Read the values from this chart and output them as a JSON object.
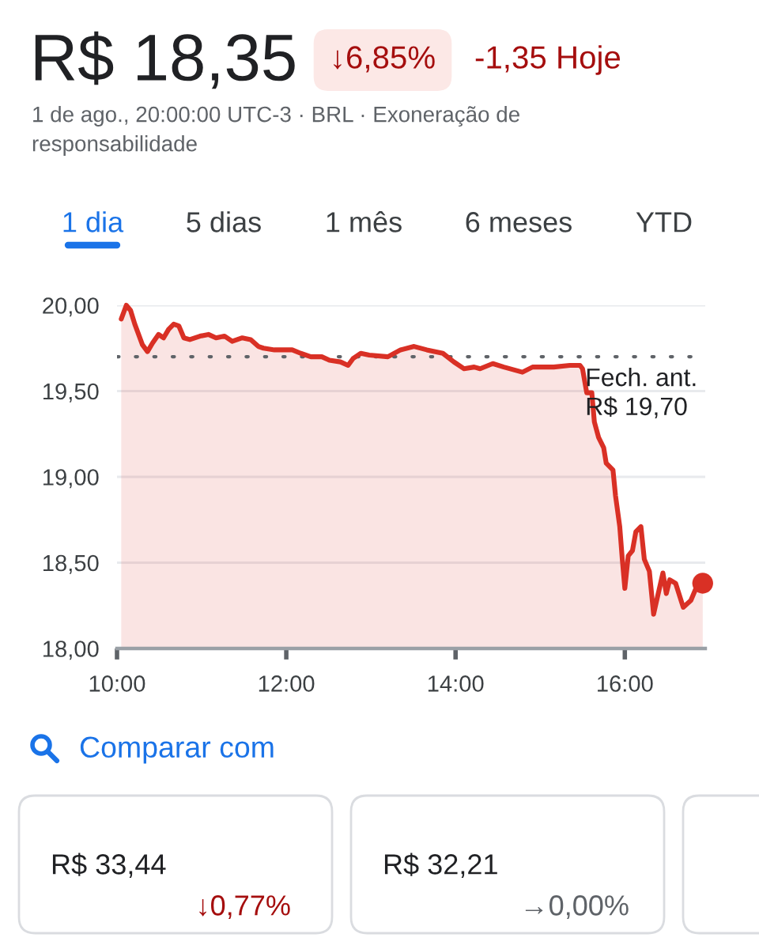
{
  "chart_data": {
    "type": "area",
    "title": "R$ 18,35",
    "subtitle": "1 de ago., 20:00:00 UTC-3 · BRL · Exoneração de responsabilidade",
    "annotations": [
      "↓6,85%",
      "-1,35 Hoje",
      "1 dia",
      "5 dias",
      "1 mês",
      "6 meses",
      "YTD",
      "Comparar com",
      "R$ 33,44",
      "↓0,77%",
      "R$ 32,21",
      "→0,00%"
    ],
    "xlim": [
      10,
      16.95
    ],
    "xticks": [
      {
        "value": 10,
        "label": "10:00"
      },
      {
        "value": 12,
        "label": "12:00"
      },
      {
        "value": 14,
        "label": "14:00"
      },
      {
        "value": 16,
        "label": "16:00"
      }
    ],
    "ylim": [
      18,
      20
    ],
    "yticks": [
      {
        "value": 18,
        "label": "18,00"
      },
      {
        "value": 18.5,
        "label": "18,50"
      },
      {
        "value": 19,
        "label": "19,00"
      },
      {
        "value": 19.5,
        "label": "19,50"
      },
      {
        "value": 20,
        "label": "20,00"
      }
    ],
    "grid": "y",
    "series": [
      {
        "color": "#d93025",
        "x": [
          10.05,
          10.11,
          10.16,
          10.21,
          10.3,
          10.36,
          10.42,
          10.49,
          10.55,
          10.61,
          10.67,
          10.73,
          10.79,
          10.86,
          10.98,
          11.08,
          11.17,
          11.27,
          11.36,
          11.48,
          11.58,
          11.67,
          11.73,
          11.86,
          11.98,
          12.07,
          12.17,
          12.29,
          12.42,
          12.51,
          12.64,
          12.73,
          12.79,
          12.88,
          12.98,
          13.2,
          13.35,
          13.51,
          13.66,
          13.85,
          13.98,
          14.1,
          14.22,
          14.29,
          14.44,
          14.57,
          14.79,
          14.91,
          15.16,
          15.35,
          15.47,
          15.5,
          15.55,
          15.61,
          15.64,
          15.69,
          15.75,
          15.78,
          15.86,
          15.89,
          15.94,
          15.97,
          16.0,
          16.04,
          16.09,
          16.13,
          16.19,
          16.23,
          16.29,
          16.34,
          16.39,
          16.45,
          16.49,
          16.53,
          16.6,
          16.69,
          16.78,
          16.84,
          16.92
        ],
        "values": [
          19.92,
          20.0,
          19.97,
          19.89,
          19.77,
          19.73,
          19.78,
          19.83,
          19.81,
          19.86,
          19.89,
          19.88,
          19.81,
          19.8,
          19.82,
          19.83,
          19.81,
          19.82,
          19.79,
          19.81,
          19.8,
          19.76,
          19.75,
          19.74,
          19.74,
          19.74,
          19.72,
          19.7,
          19.7,
          19.68,
          19.67,
          19.65,
          19.69,
          19.72,
          19.71,
          19.7,
          19.74,
          19.76,
          19.74,
          19.72,
          19.67,
          19.63,
          19.64,
          19.63,
          19.66,
          19.64,
          19.61,
          19.64,
          19.64,
          19.65,
          19.65,
          19.63,
          19.49,
          19.49,
          19.32,
          19.23,
          19.17,
          19.08,
          19.04,
          18.89,
          18.71,
          18.52,
          18.35,
          18.54,
          18.57,
          18.68,
          18.71,
          18.52,
          18.45,
          18.2,
          18.31,
          18.44,
          18.32,
          18.4,
          18.38,
          18.24,
          18.28,
          18.35,
          18.38
        ]
      },
      {
        "type": "scatter",
        "color": "#d93025",
        "marker": "circle",
        "x": [
          16.92
        ],
        "values": [
          18.38
        ]
      }
    ],
    "ref_lines": [
      {
        "axis": "y",
        "value": 19.7,
        "label": "Fech. ant.\nR$ 19,70",
        "color": "#5f6368",
        "line_style": "dotted"
      }
    ]
  }
}
